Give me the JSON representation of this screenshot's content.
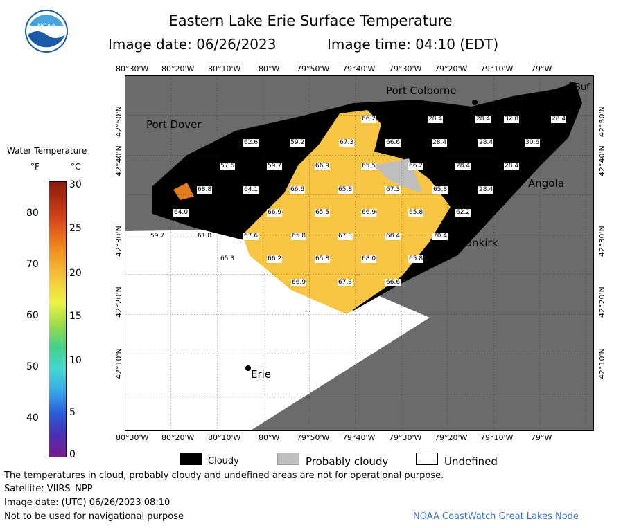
{
  "header": {
    "title": "Eastern Lake Erie Surface Temperature",
    "image_date_label": "Image date: 06/26/2023",
    "image_time_label": "Image time: 04:10 (EDT)",
    "logo_text": "NOAA"
  },
  "map": {
    "lon_labels": [
      "80°30'W",
      "80°20'W",
      "80°10'W",
      "80°W",
      "79°50'W",
      "79°40'W",
      "79°30'W",
      "79°20'W",
      "79°10'W",
      "79°W"
    ],
    "lat_labels": [
      "42°50'N",
      "42°40'N",
      "42°30'N",
      "42°20'N",
      "42°10'N"
    ],
    "places": {
      "port_colborne": "Port Colborne",
      "port_dover": "Port Dover",
      "angola": "Angola",
      "dunkirk": "Dunkirk",
      "erie": "Erie",
      "buffalo": "Buf"
    },
    "temps": [
      {
        "v": "66.2"
      },
      {
        "v": "28.4"
      },
      {
        "v": "28.4"
      },
      {
        "v": "32.0"
      },
      {
        "v": "28.4"
      },
      {
        "v": "62.6"
      },
      {
        "v": "59.2"
      },
      {
        "v": "67.3"
      },
      {
        "v": "66.6"
      },
      {
        "v": "28.4"
      },
      {
        "v": "28.4"
      },
      {
        "v": "30.6"
      },
      {
        "v": "57.6"
      },
      {
        "v": "59.7"
      },
      {
        "v": "66.9"
      },
      {
        "v": "65.5"
      },
      {
        "v": "66.2"
      },
      {
        "v": "28.4"
      },
      {
        "v": "28.4"
      },
      {
        "v": "68.8"
      },
      {
        "v": "64.1"
      },
      {
        "v": "66.6"
      },
      {
        "v": "65.8"
      },
      {
        "v": "67.3"
      },
      {
        "v": "65.8"
      },
      {
        "v": "28.4"
      },
      {
        "v": "64.0"
      },
      {
        "v": "66.9"
      },
      {
        "v": "65.5"
      },
      {
        "v": "66.9"
      },
      {
        "v": "65.8"
      },
      {
        "v": "62.2"
      },
      {
        "v": "59.7"
      },
      {
        "v": "61.8"
      },
      {
        "v": "67.6"
      },
      {
        "v": "65.8"
      },
      {
        "v": "67.3"
      },
      {
        "v": "68.4"
      },
      {
        "v": "70.4"
      },
      {
        "v": "65.3"
      },
      {
        "v": "66.2"
      },
      {
        "v": "65.8"
      },
      {
        "v": "68.0"
      },
      {
        "v": "65.8"
      },
      {
        "v": "66.9"
      },
      {
        "v": "67.3"
      },
      {
        "v": "66.6"
      }
    ]
  },
  "legend": {
    "title": "Water Temperature",
    "unit_f": "°F",
    "unit_c": "°C",
    "f_ticks": [
      "80",
      "70",
      "60",
      "50",
      "40"
    ],
    "c_ticks": [
      "30",
      "25",
      "20",
      "15",
      "10",
      "5",
      "0"
    ],
    "cloudy": "Cloudy",
    "probably_cloudy": "Probably cloudy",
    "undefined": "Undefined",
    "colors": {
      "cloudy": "#000000",
      "probably_cloudy": "#bebebe",
      "undefined": "#ffffff",
      "land": "#6b6b6b",
      "water_warm": "#f5c543"
    }
  },
  "footer": {
    "note": "The temperatures in cloud, probably cloudy and undefined areas are not for operational purpose.",
    "satellite": "Satellite: VIIRS_NPP",
    "utc_date": "Image date: (UTC) 06/26/2023  08:10",
    "nav_warning": "Not to be used for navigational purpose",
    "credit": "NOAA CoastWatch Great Lakes Node"
  }
}
